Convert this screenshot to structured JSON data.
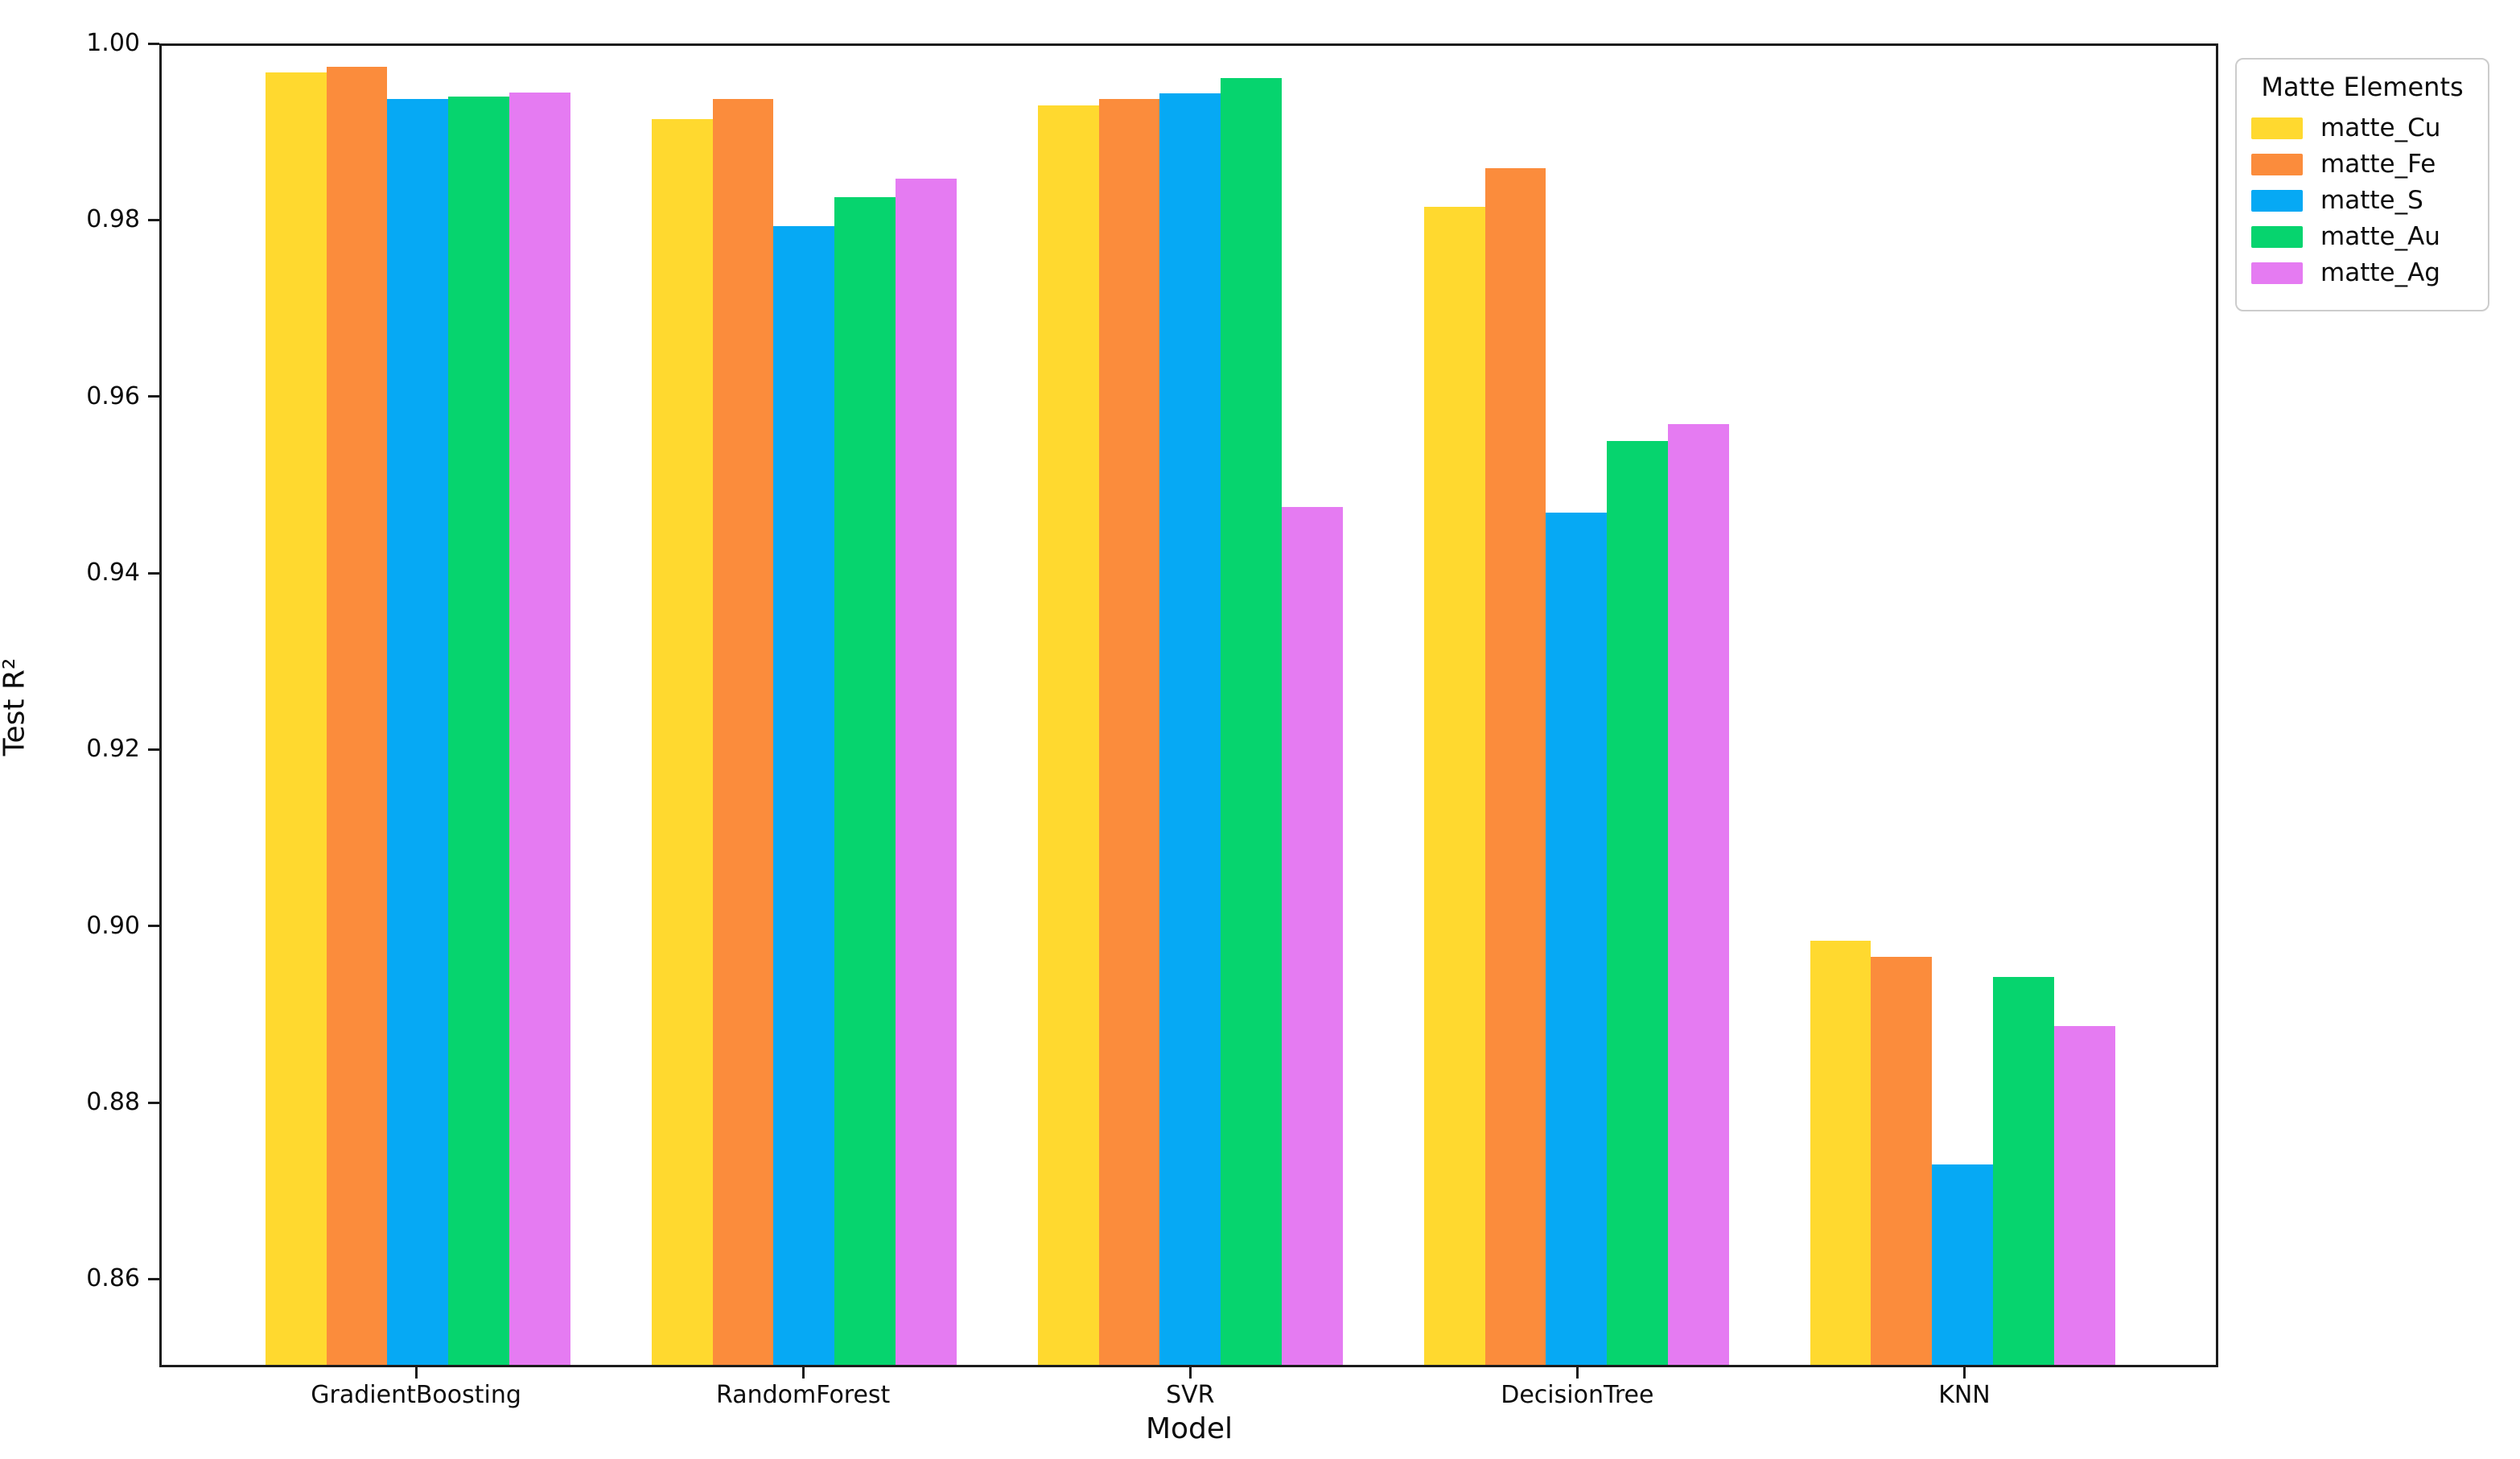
{
  "chart_data": {
    "type": "bar",
    "title": "",
    "xlabel": "Model",
    "ylabel": "Test R²",
    "categories": [
      "GradientBoosting",
      "RandomForest",
      "SVR",
      "DecisionTree",
      "KNN"
    ],
    "series": [
      {
        "name": "matte_Cu",
        "color": "#FFD92F",
        "values": [
          0.997,
          0.9917,
          0.9932,
          0.9817,
          0.8982
        ]
      },
      {
        "name": "matte_Fe",
        "color": "#FB8C3C",
        "values": [
          0.9976,
          0.994,
          0.994,
          0.9861,
          0.8964
        ]
      },
      {
        "name": "matte_S",
        "color": "#06A9F4",
        "values": [
          0.994,
          0.9795,
          0.9946,
          0.9469,
          0.8728
        ]
      },
      {
        "name": "matte_Au",
        "color": "#06D46E",
        "values": [
          0.9942,
          0.9828,
          0.9963,
          0.9551,
          0.8941
        ]
      },
      {
        "name": "matte_Ag",
        "color": "#E57BF2",
        "values": [
          0.9947,
          0.9849,
          0.9476,
          0.957,
          0.8885
        ]
      }
    ],
    "legend_title": "Matte Elements",
    "legend_position": "outside upper right",
    "ylim": [
      0.85,
      1.0
    ],
    "yticks": [
      0.86,
      0.88,
      0.9,
      0.92,
      0.94,
      0.96,
      0.98,
      1.0
    ],
    "ytick_format": "2dp",
    "grid": false,
    "background": "#ffffff",
    "spine_color": "#1c1c1c"
  }
}
